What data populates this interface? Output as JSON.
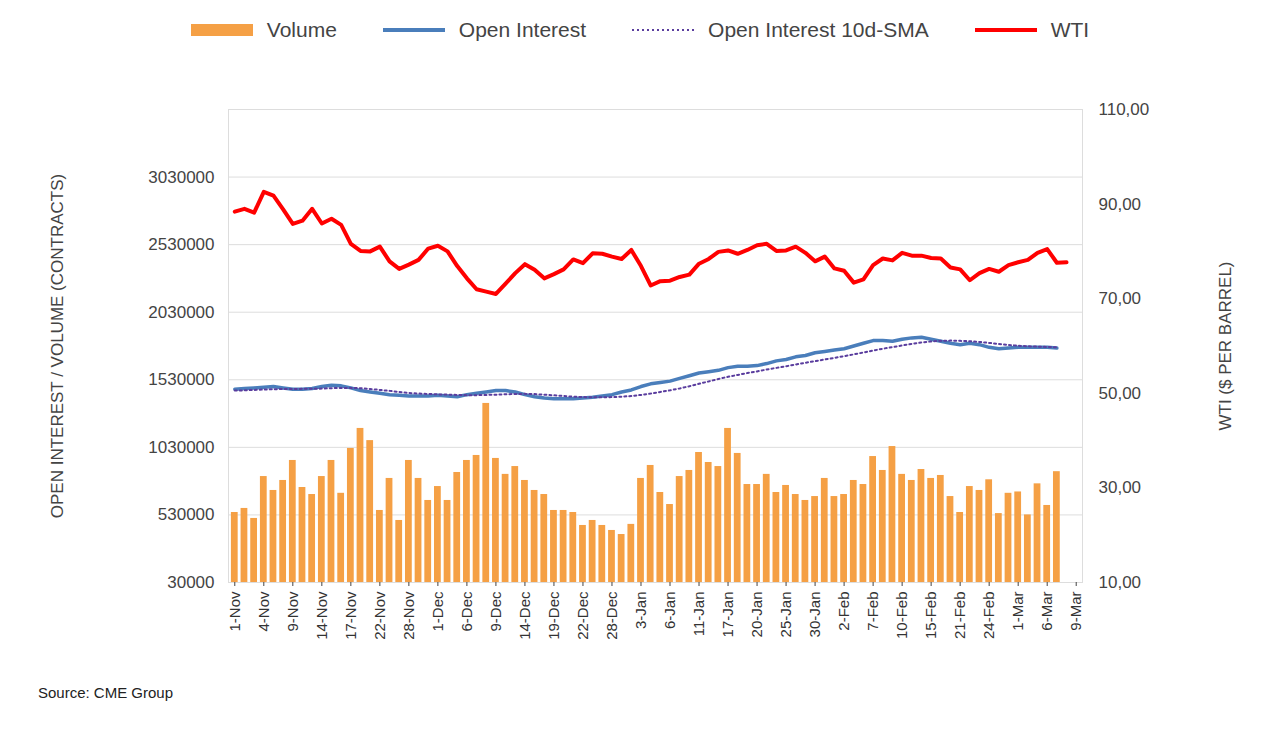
{
  "chart_data": {
    "type": "bar",
    "y_label": "OPEN INTEREST / VOLUME (CONTRACTS)",
    "y2_label": "WTI ($ PER BARREL)",
    "caption": "Source: CME Group",
    "grid": true,
    "categories": [
      "1-Nov",
      null,
      null,
      "4-Nov",
      null,
      null,
      "9-Nov",
      null,
      null,
      "14-Nov",
      null,
      null,
      "17-Nov",
      null,
      null,
      "22-Nov",
      null,
      null,
      "28-Nov",
      null,
      null,
      "1-Dec",
      null,
      null,
      "6-Dec",
      null,
      null,
      "9-Dec",
      null,
      null,
      "14-Dec",
      null,
      null,
      "19-Dec",
      null,
      null,
      "22-Dec",
      null,
      null,
      "28-Dec",
      null,
      null,
      "3-Jan",
      null,
      null,
      "6-Jan",
      null,
      null,
      "11-Jan",
      null,
      null,
      "17-Jan",
      null,
      null,
      "20-Jan",
      null,
      null,
      "25-Jan",
      null,
      null,
      "30-Jan",
      null,
      null,
      "2-Feb",
      null,
      null,
      "7-Feb",
      null,
      null,
      "10-Feb",
      null,
      null,
      "15-Feb",
      null,
      null,
      "21-Feb",
      null,
      null,
      "24-Feb",
      null,
      null,
      "1-Mar",
      null,
      null,
      "6-Mar",
      null,
      null,
      "9-Mar"
    ],
    "ylim": [
      30000,
      3530000
    ],
    "yticks": [
      30000,
      530000,
      1030000,
      1530000,
      2030000,
      2530000,
      3030000
    ],
    "y2lim": [
      10,
      110
    ],
    "y2ticks": [
      {
        "value": 10,
        "label": "10,00"
      },
      {
        "value": 30,
        "label": "30,00"
      },
      {
        "value": 50,
        "label": "50,00"
      },
      {
        "value": 70,
        "label": "70,00"
      },
      {
        "value": 90,
        "label": "90,00"
      },
      {
        "value": 110,
        "label": "110,00"
      }
    ],
    "series": [
      {
        "name": "Volume",
        "type": "bar",
        "color": "#f5a045",
        "values": [
          548000,
          578000,
          504000,
          814000,
          711000,
          785000,
          933000,
          733000,
          681000,
          814000,
          933000,
          690000,
          1022000,
          1170000,
          1080000,
          563000,
          800000,
          489000,
          933000,
          800000,
          637000,
          740000,
          637000,
          844000,
          933000,
          970000,
          1355000,
          948000,
          830000,
          888000,
          785000,
          711000,
          681000,
          563000,
          563000,
          548000,
          452000,
          489000,
          452000,
          415000,
          385000,
          460000,
          800000,
          896000,
          696000,
          607000,
          814000,
          859000,
          992000,
          918000,
          888000,
          1170000,
          985000,
          755000,
          755000,
          830000,
          696000,
          748000,
          681000,
          637000,
          666000,
          800000,
          666000,
          681000,
          785000,
          755000,
          962000,
          859000,
          1036000,
          830000,
          785000,
          866000,
          800000,
          822000,
          666000,
          548000,
          740000,
          711000,
          790000,
          540000,
          690000,
          700000,
          530000,
          760000,
          600000,
          850000,
          null,
          null
        ]
      },
      {
        "name": "Open Interest",
        "type": "line",
        "color": "#4a7ebb",
        "line_style": "solid",
        "values": [
          1460000,
          1465000,
          1470000,
          1475000,
          1480000,
          1470000,
          1460000,
          1460000,
          1465000,
          1480000,
          1490000,
          1485000,
          1470000,
          1450000,
          1440000,
          1430000,
          1420000,
          1415000,
          1410000,
          1410000,
          1410000,
          1415000,
          1410000,
          1405000,
          1420000,
          1430000,
          1440000,
          1450000,
          1450000,
          1440000,
          1420000,
          1405000,
          1395000,
          1390000,
          1390000,
          1390000,
          1395000,
          1400000,
          1410000,
          1420000,
          1440000,
          1455000,
          1480000,
          1500000,
          1510000,
          1520000,
          1540000,
          1560000,
          1580000,
          1590000,
          1600000,
          1620000,
          1630000,
          1630000,
          1635000,
          1650000,
          1670000,
          1680000,
          1700000,
          1710000,
          1730000,
          1740000,
          1750000,
          1760000,
          1780000,
          1800000,
          1820000,
          1820000,
          1815000,
          1830000,
          1840000,
          1845000,
          1830000,
          1815000,
          1800000,
          1790000,
          1800000,
          1790000,
          1770000,
          1760000,
          1765000,
          1770000,
          1770000,
          1770000,
          1770000,
          1765000,
          null,
          null
        ]
      },
      {
        "name": "Open Interest 10d-SMA",
        "type": "line",
        "color": "#5a3d9e",
        "line_style": "dotted",
        "values": [
          1450000,
          1452000,
          1455000,
          1458000,
          1460000,
          1462000,
          1462000,
          1463000,
          1463000,
          1465000,
          1468000,
          1470000,
          1470000,
          1468000,
          1462000,
          1455000,
          1448000,
          1440000,
          1432000,
          1428000,
          1425000,
          1422000,
          1420000,
          1418000,
          1416000,
          1416000,
          1418000,
          1420000,
          1423000,
          1425000,
          1426000,
          1424000,
          1420000,
          1415000,
          1410000,
          1405000,
          1402000,
          1400000,
          1400000,
          1402000,
          1405000,
          1410000,
          1418000,
          1428000,
          1440000,
          1452000,
          1466000,
          1482000,
          1500000,
          1518000,
          1536000,
          1552000,
          1566000,
          1580000,
          1592000,
          1606000,
          1618000,
          1630000,
          1643000,
          1656000,
          1668000,
          1680000,
          1692000,
          1705000,
          1718000,
          1732000,
          1746000,
          1760000,
          1772000,
          1784000,
          1796000,
          1806000,
          1814000,
          1818000,
          1820000,
          1818000,
          1815000,
          1810000,
          1803000,
          1795000,
          1788000,
          1782000,
          1778000,
          1775000,
          1773000,
          1771000,
          null,
          null
        ]
      },
      {
        "name": "WTI",
        "type": "line",
        "color": "#ff0000",
        "line_style": "solid",
        "axis": "y2",
        "values": [
          88.4,
          89.0,
          88.2,
          92.6,
          91.8,
          88.9,
          85.8,
          86.5,
          89.0,
          85.9,
          86.9,
          85.6,
          81.6,
          80.1,
          80.0,
          81.0,
          77.9,
          76.3,
          77.2,
          78.2,
          80.6,
          81.2,
          80.0,
          76.9,
          74.3,
          72.0,
          71.5,
          71.0,
          73.2,
          75.4,
          77.3,
          76.1,
          74.3,
          75.2,
          76.2,
          78.3,
          77.5,
          79.6,
          79.5,
          78.9,
          78.4,
          80.3,
          76.9,
          72.8,
          73.7,
          73.8,
          74.6,
          75.1,
          77.4,
          78.4,
          79.9,
          80.2,
          79.5,
          80.3,
          81.3,
          81.6,
          80.1,
          80.2,
          81.0,
          79.7,
          77.9,
          78.9,
          76.4,
          75.9,
          73.4,
          74.1,
          77.1,
          78.5,
          78.1,
          79.7,
          79.1,
          79.1,
          78.6,
          78.5,
          76.6,
          76.2,
          73.9,
          75.4,
          76.3,
          75.7,
          77.1,
          77.7,
          78.2,
          79.7,
          80.5,
          77.6,
          77.7,
          null
        ]
      }
    ]
  }
}
